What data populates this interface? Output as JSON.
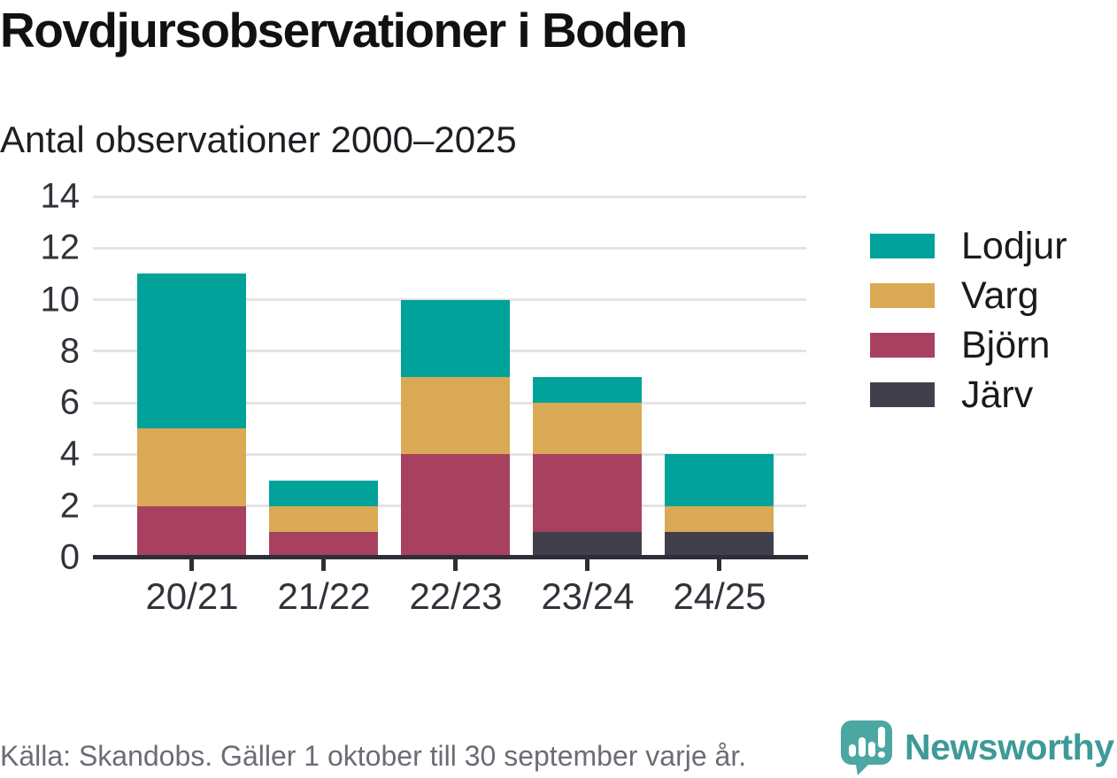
{
  "title": "Rovdjursobservationer i Boden",
  "subtitle": "Antal observationer 2000–2025",
  "footer": {
    "source": "Källa: Skandobs. Gäller 1 oktober till 30 september varje år."
  },
  "branding": {
    "name": "Newsworthy",
    "color": "#3e9a97",
    "icon": "newsworthy-speech-bubble-bar-chart-icon",
    "icon_color": "#4ca7a2"
  },
  "colors": {
    "lodjur": "#00a29a",
    "varg": "#d9a955",
    "bjorn": "#a84160",
    "jarv": "#423f4d",
    "axis": "#2f2d38",
    "gridline": "#e4e4e6",
    "background": "#ffffff"
  },
  "chart_data": {
    "type": "bar",
    "stacked": true,
    "title": "Rovdjursobservationer i Boden",
    "subtitle": "Antal observationer 2000–2025",
    "xlabel": "",
    "ylabel": "",
    "categories": [
      "20/21",
      "21/22",
      "22/23",
      "23/24",
      "24/25"
    ],
    "series": [
      {
        "name": "Lodjur",
        "color": "#00a29a",
        "values": [
          6,
          1,
          3,
          1,
          2
        ]
      },
      {
        "name": "Varg",
        "color": "#d9a955",
        "values": [
          3,
          1,
          3,
          2,
          1
        ]
      },
      {
        "name": "Björn",
        "color": "#a84160",
        "values": [
          2,
          1,
          4,
          3,
          0
        ]
      },
      {
        "name": "Järv",
        "color": "#423f4d",
        "values": [
          0,
          0,
          0,
          1,
          1
        ]
      }
    ],
    "stack_order_bottom_to_top": [
      "Järv",
      "Björn",
      "Varg",
      "Lodjur"
    ],
    "totals": [
      11,
      3,
      10,
      7,
      4
    ],
    "ylim": [
      0,
      14
    ],
    "yticks": [
      0,
      2,
      4,
      6,
      8,
      10,
      12,
      14
    ],
    "grid": true,
    "legend_position": "right",
    "legend": [
      "Lodjur",
      "Varg",
      "Björn",
      "Järv"
    ]
  }
}
